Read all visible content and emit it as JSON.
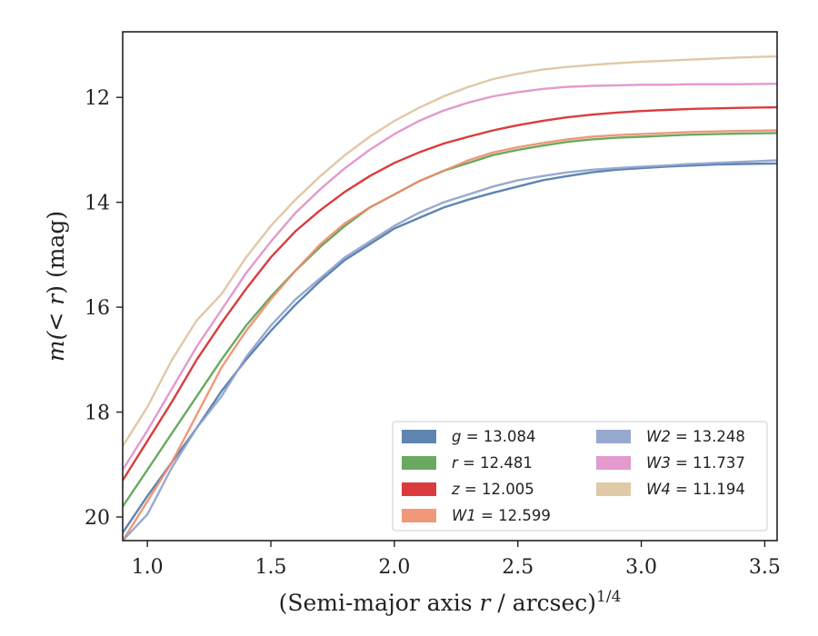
{
  "chart_data": {
    "type": "line",
    "title": "",
    "xlabel_main": "(Semi-major axis ",
    "xlabel_var": "r",
    "xlabel_rest": " / arcsec)",
    "xlabel_sup": "1/4",
    "ylabel_var1": "m",
    "ylabel_paren": "(< ",
    "ylabel_var2": "r",
    "ylabel_rest": ") (mag)",
    "xlim": [
      0.9,
      3.55
    ],
    "ylim": [
      20.45,
      10.75
    ],
    "y_inverted": true,
    "grid": false,
    "legend_placement": "lower-right",
    "x_ticks": [
      1.0,
      1.5,
      2.0,
      2.5,
      3.0,
      3.5
    ],
    "x_tick_labels": [
      "1.0",
      "1.5",
      "2.0",
      "2.5",
      "3.0",
      "3.5"
    ],
    "y_ticks": [
      12,
      14,
      16,
      18,
      20
    ],
    "y_tick_labels": [
      "12",
      "14",
      "16",
      "18",
      "20"
    ],
    "series": [
      {
        "name": "g = 13.084",
        "band": "g",
        "legend_value": "13.084",
        "color": "#4c78a8",
        "x": [
          0.9,
          1.0,
          1.1,
          1.2,
          1.3,
          1.4,
          1.5,
          1.6,
          1.7,
          1.8,
          1.9,
          2.0,
          2.1,
          2.2,
          2.3,
          2.4,
          2.5,
          2.6,
          2.7,
          2.8,
          2.9,
          3.0,
          3.1,
          3.2,
          3.3,
          3.4,
          3.55
        ],
        "y": [
          20.3,
          19.6,
          18.95,
          18.3,
          17.6,
          17.0,
          16.45,
          15.95,
          15.5,
          15.1,
          14.8,
          14.5,
          14.3,
          14.1,
          13.95,
          13.82,
          13.7,
          13.58,
          13.5,
          13.43,
          13.38,
          13.35,
          13.32,
          13.3,
          13.28,
          13.27,
          13.26
        ]
      },
      {
        "name": "r = 12.481",
        "band": "r",
        "legend_value": "12.481",
        "color": "#59a14f",
        "x": [
          0.9,
          1.0,
          1.1,
          1.2,
          1.3,
          1.4,
          1.5,
          1.6,
          1.7,
          1.8,
          1.9,
          2.0,
          2.1,
          2.2,
          2.3,
          2.4,
          2.5,
          2.6,
          2.7,
          2.8,
          2.9,
          3.0,
          3.1,
          3.2,
          3.3,
          3.4,
          3.55
        ],
        "y": [
          19.8,
          19.1,
          18.4,
          17.7,
          17.0,
          16.35,
          15.8,
          15.3,
          14.85,
          14.45,
          14.1,
          13.85,
          13.6,
          13.4,
          13.25,
          13.1,
          13.0,
          12.92,
          12.85,
          12.8,
          12.77,
          12.75,
          12.73,
          12.71,
          12.7,
          12.69,
          12.68
        ]
      },
      {
        "name": "z = 12.005",
        "band": "z",
        "legend_value": "12.005",
        "color": "#d62728",
        "x": [
          0.9,
          1.0,
          1.1,
          1.2,
          1.3,
          1.4,
          1.5,
          1.6,
          1.7,
          1.8,
          1.9,
          2.0,
          2.1,
          2.2,
          2.3,
          2.4,
          2.5,
          2.6,
          2.7,
          2.8,
          2.9,
          3.0,
          3.1,
          3.2,
          3.3,
          3.4,
          3.55
        ],
        "y": [
          19.3,
          18.55,
          17.8,
          17.0,
          16.3,
          15.65,
          15.05,
          14.55,
          14.15,
          13.8,
          13.5,
          13.25,
          13.05,
          12.88,
          12.75,
          12.63,
          12.53,
          12.45,
          12.38,
          12.33,
          12.29,
          12.26,
          12.24,
          12.22,
          12.21,
          12.2,
          12.19
        ]
      },
      {
        "name": "W1 = 12.599",
        "band": "W1",
        "legend_value": "12.599",
        "color": "#f08c6c",
        "x": [
          0.9,
          1.0,
          1.1,
          1.2,
          1.3,
          1.4,
          1.5,
          1.6,
          1.7,
          1.8,
          1.9,
          2.0,
          2.1,
          2.2,
          2.3,
          2.4,
          2.5,
          2.6,
          2.7,
          2.8,
          2.9,
          3.0,
          3.1,
          3.2,
          3.3,
          3.4,
          3.55
        ],
        "y": [
          20.45,
          19.7,
          18.95,
          18.05,
          17.15,
          16.45,
          15.85,
          15.3,
          14.8,
          14.4,
          14.1,
          13.85,
          13.6,
          13.4,
          13.2,
          13.05,
          12.95,
          12.87,
          12.8,
          12.75,
          12.72,
          12.7,
          12.68,
          12.66,
          12.65,
          12.64,
          12.63
        ]
      },
      {
        "name": "W2 = 13.248",
        "band": "W2",
        "legend_value": "13.248",
        "color": "#8da0cb",
        "x": [
          0.9,
          1.0,
          1.1,
          1.2,
          1.3,
          1.4,
          1.5,
          1.6,
          1.7,
          1.8,
          1.9,
          2.0,
          2.1,
          2.2,
          2.3,
          2.4,
          2.5,
          2.6,
          2.7,
          2.8,
          2.9,
          3.0,
          3.1,
          3.2,
          3.3,
          3.4,
          3.55
        ],
        "y": [
          20.45,
          19.95,
          19.05,
          18.3,
          17.7,
          16.95,
          16.35,
          15.85,
          15.45,
          15.05,
          14.75,
          14.45,
          14.2,
          14.0,
          13.85,
          13.7,
          13.58,
          13.5,
          13.43,
          13.38,
          13.35,
          13.32,
          13.3,
          13.27,
          13.25,
          13.23,
          13.2
        ]
      },
      {
        "name": "W3 = 11.737",
        "band": "W3",
        "legend_value": "11.737",
        "color": "#e08fc6",
        "x": [
          0.9,
          1.0,
          1.1,
          1.2,
          1.3,
          1.4,
          1.5,
          1.6,
          1.7,
          1.8,
          1.9,
          2.0,
          2.1,
          2.2,
          2.3,
          2.4,
          2.5,
          2.6,
          2.7,
          2.8,
          2.9,
          3.0,
          3.1,
          3.2,
          3.3,
          3.4,
          3.55
        ],
        "y": [
          19.1,
          18.35,
          17.55,
          16.75,
          16.05,
          15.35,
          14.75,
          14.2,
          13.75,
          13.35,
          13.0,
          12.7,
          12.45,
          12.25,
          12.1,
          11.98,
          11.9,
          11.84,
          11.8,
          11.78,
          11.77,
          11.76,
          11.76,
          11.75,
          11.75,
          11.75,
          11.74
        ]
      },
      {
        "name": "W4 = 11.194",
        "band": "W4",
        "legend_value": "11.194",
        "color": "#dcc39c",
        "x": [
          0.9,
          1.0,
          1.1,
          1.2,
          1.3,
          1.4,
          1.5,
          1.6,
          1.7,
          1.8,
          1.9,
          2.0,
          2.1,
          2.2,
          2.3,
          2.4,
          2.5,
          2.6,
          2.7,
          2.8,
          2.9,
          3.0,
          3.1,
          3.2,
          3.3,
          3.4,
          3.55
        ],
        "y": [
          18.65,
          17.9,
          17.0,
          16.25,
          15.75,
          15.05,
          14.45,
          13.95,
          13.5,
          13.1,
          12.75,
          12.45,
          12.2,
          11.98,
          11.8,
          11.65,
          11.55,
          11.47,
          11.42,
          11.38,
          11.35,
          11.32,
          11.3,
          11.28,
          11.26,
          11.24,
          11.22
        ]
      }
    ]
  }
}
